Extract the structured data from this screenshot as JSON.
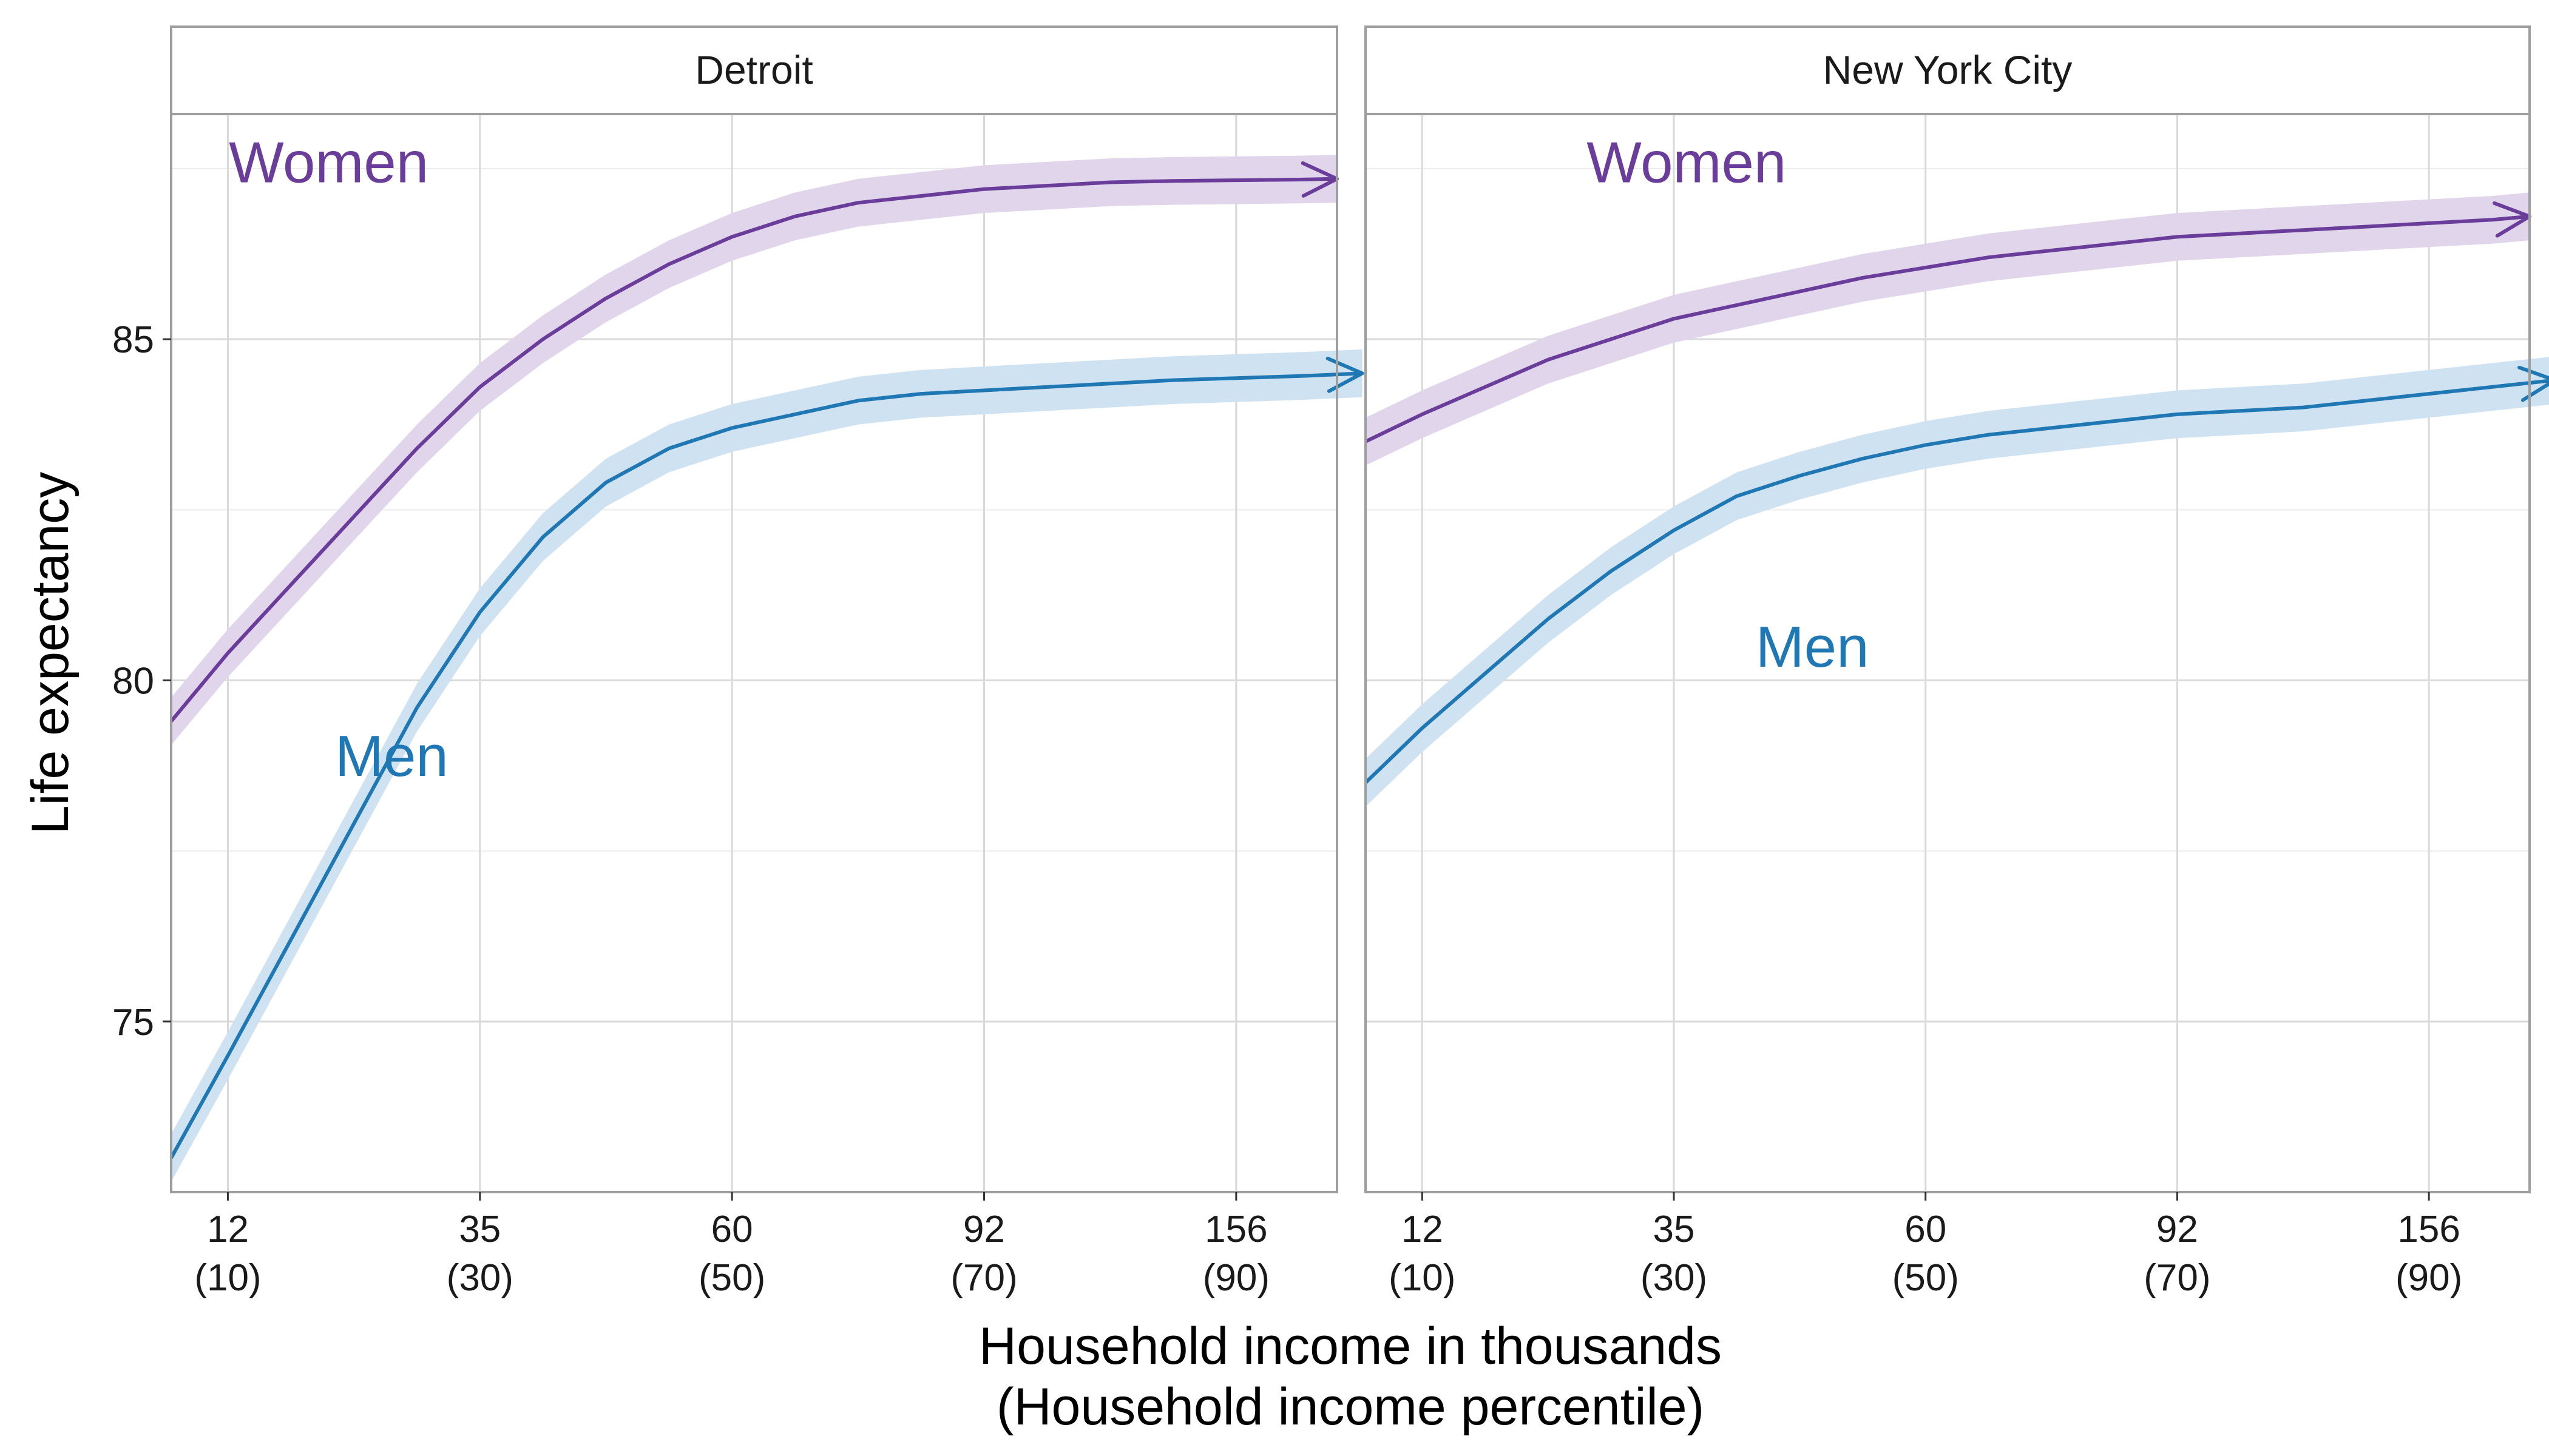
{
  "chart_data": {
    "type": "line",
    "xlabel": "Household income in thousands",
    "xlabel_sub": "(Household income percentile)",
    "ylabel": "Life expectancy",
    "ylim": [
      72.5,
      88.3
    ],
    "yticks": [
      75,
      80,
      85
    ],
    "x_unit": "household income percentile",
    "xlim": [
      5.5,
      98
    ],
    "xticks": [
      {
        "pct": 10,
        "income": "12",
        "pct_label": "(10)"
      },
      {
        "pct": 30,
        "income": "35",
        "pct_label": "(30)"
      },
      {
        "pct": 50,
        "income": "60",
        "pct_label": "(50)"
      },
      {
        "pct": 70,
        "income": "92",
        "pct_label": "(70)"
      },
      {
        "pct": 90,
        "income": "156",
        "pct_label": "(90)"
      }
    ],
    "grid": true,
    "colors": {
      "women": "#6a3d9a",
      "women_band": "#e1d5ec",
      "men": "#1f78b4",
      "men_band": "#cfe2f1"
    },
    "panels": [
      {
        "title": "Detroit",
        "series": [
          {
            "name": "Women",
            "label_at": {
              "x": 18,
              "y": 87.3
            },
            "x": [
              5.5,
              10,
              15,
              20,
              25,
              30,
              35,
              40,
              45,
              50,
              55,
              60,
              65,
              70,
              75,
              80,
              85,
              90,
              95,
              98
            ],
            "y": [
              79.4,
              80.4,
              81.4,
              82.4,
              83.4,
              84.3,
              85.0,
              85.6,
              86.1,
              86.5,
              86.8,
              87.0,
              87.1,
              87.2,
              87.25,
              87.3,
              87.32,
              87.33,
              87.34,
              87.35
            ],
            "band": 0.35
          },
          {
            "name": "Men",
            "label_at": {
              "x": 23,
              "y": 78.6
            },
            "x": [
              5.5,
              10,
              15,
              20,
              25,
              30,
              35,
              40,
              45,
              50,
              55,
              60,
              65,
              70,
              75,
              80,
              85,
              90,
              95,
              100
            ],
            "y": [
              73.0,
              74.5,
              76.2,
              77.9,
              79.6,
              81.0,
              82.1,
              82.9,
              83.4,
              83.7,
              83.9,
              84.1,
              84.2,
              84.25,
              84.3,
              84.35,
              84.4,
              84.43,
              84.46,
              84.5
            ],
            "band": 0.35
          }
        ]
      },
      {
        "title": "New York City",
        "series": [
          {
            "name": "Women",
            "label_at": {
              "x": 31,
              "y": 87.3
            },
            "x": [
              5.5,
              10,
              15,
              20,
              25,
              30,
              35,
              40,
              45,
              50,
              55,
              60,
              65,
              70,
              75,
              80,
              85,
              90,
              95,
              98
            ],
            "y": [
              83.5,
              83.9,
              84.3,
              84.7,
              85.0,
              85.3,
              85.5,
              85.7,
              85.9,
              86.05,
              86.2,
              86.3,
              86.4,
              86.5,
              86.55,
              86.6,
              86.65,
              86.7,
              86.75,
              86.8
            ],
            "band": 0.35
          },
          {
            "name": "Men",
            "label_at": {
              "x": 41,
              "y": 80.2
            },
            "x": [
              5.5,
              10,
              15,
              20,
              25,
              30,
              35,
              40,
              45,
              50,
              55,
              60,
              65,
              70,
              75,
              80,
              85,
              90,
              95,
              100
            ],
            "y": [
              78.5,
              79.3,
              80.1,
              80.9,
              81.6,
              82.2,
              82.7,
              83.0,
              83.25,
              83.45,
              83.6,
              83.7,
              83.8,
              83.9,
              83.95,
              84.0,
              84.1,
              84.2,
              84.3,
              84.4
            ],
            "band": 0.35
          }
        ]
      }
    ]
  }
}
